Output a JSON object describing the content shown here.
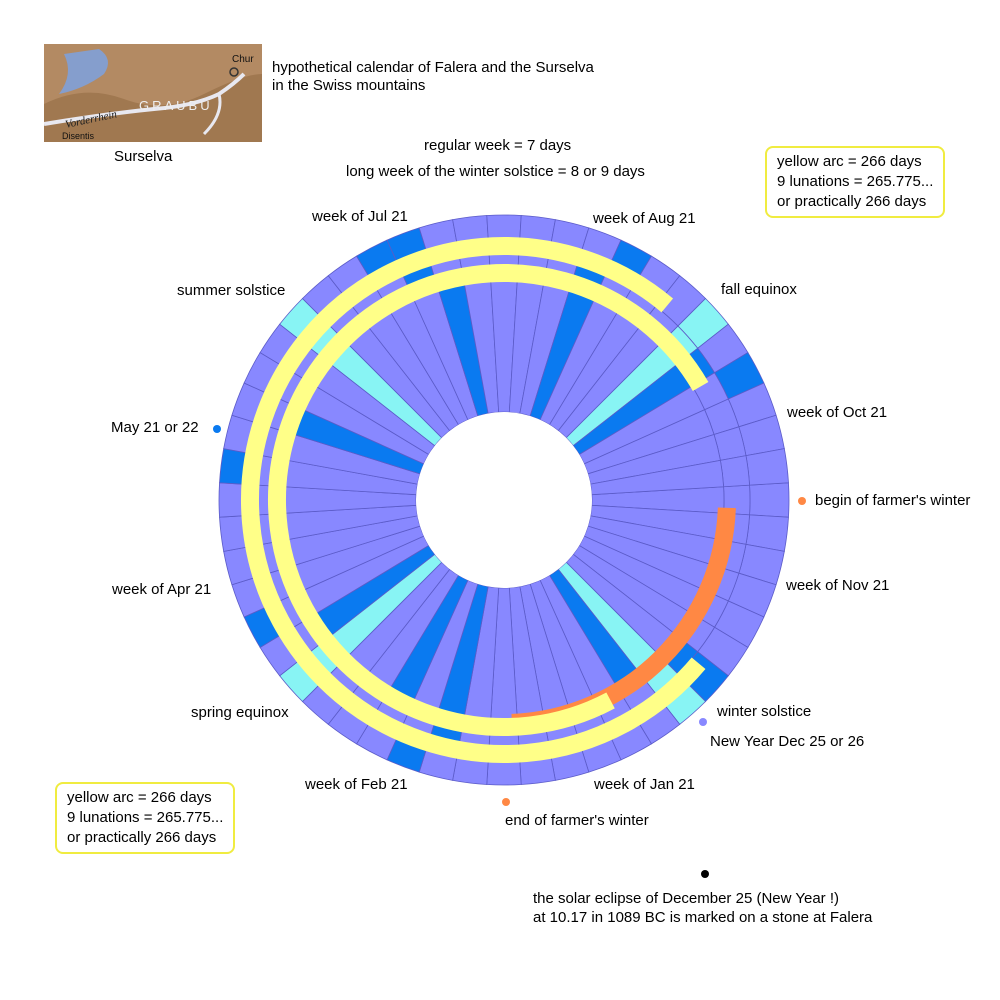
{
  "map": {
    "caption": "Surselva",
    "place_labels": [
      "Vorderrhein",
      "GRAUBÜ",
      "Chur",
      "Disentis"
    ]
  },
  "title": {
    "line1": "hypothetical calendar of Falera and the Surselva",
    "line2": "in the Swiss mountains"
  },
  "header": {
    "regular_week": "regular week = 7 days",
    "long_week": "long week of the winter solstice = 8 or 9 days"
  },
  "info_box_top": {
    "line1": "yellow arc = 266 days",
    "line2": "9 lunations = 265.775...",
    "line3": "or practically 266 days"
  },
  "info_box_bottom": {
    "line1": "yellow arc = 266 days",
    "line2": "9 lunations = 265.775...",
    "line3": "or practically 266 days"
  },
  "ring_labels": {
    "week_jul": "week of Jul 21",
    "week_aug": "week of Aug 21",
    "summer_solstice": "summer solstice",
    "fall_equinox": "fall equinox",
    "may": "May 21 or 22",
    "week_oct": "week of  Oct 21",
    "begin_winter": "begin of farmer's winter",
    "week_apr": "week of Apr 21",
    "week_nov": "week of Nov 21",
    "spring_equinox": "spring equinox",
    "winter_solstice": "winter solstice",
    "new_year": "New Year  Dec 25 or 26",
    "week_feb": "week of Feb 21",
    "week_jan": "week of Jan 21",
    "end_winter": "end of farmer's winter"
  },
  "eclipse": {
    "line1": "the solar eclipse of December 25 (New Year !)",
    "line2": "at 10.17 in 1089 BC is marked on a stone at Falera"
  },
  "colors": {
    "week": "#8888ff",
    "month_week": "#0a7af0",
    "solstice_equinox": "#88f4f4",
    "yellow_arc": "#ffff88",
    "farmer_winter": "#ff8844",
    "blue_dot": "#0a7af0",
    "orange_dot": "#ff8844",
    "purple_dot": "#8888ff",
    "black_dot": "#000000",
    "box_border": "#f0ec40"
  }
}
